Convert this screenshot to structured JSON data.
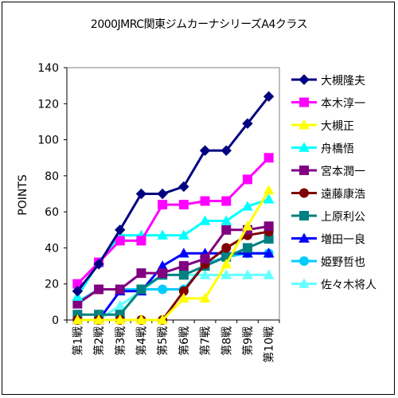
{
  "chart_data": {
    "type": "line",
    "title": "2000JMRC関東ジムカーナシリーズA4クラス",
    "ylabel": "POINTS",
    "xlabel": "",
    "ylim": [
      0,
      140
    ],
    "yticks": [
      0,
      20,
      40,
      60,
      80,
      100,
      120,
      140
    ],
    "grid": false,
    "legend_position": "right",
    "categories": [
      "第1戦",
      "第2戦",
      "第3戦",
      "第4戦",
      "第5戦",
      "第6戦",
      "第7戦",
      "第8戦",
      "第9戦",
      "第10戦"
    ],
    "series": [
      {
        "name": "大槻隆夫",
        "color": "#000080",
        "marker": "diamond",
        "values": [
          16,
          31,
          50,
          70,
          70,
          74,
          94,
          94,
          109,
          124
        ]
      },
      {
        "name": "本木淳一",
        "color": "#FF00FF",
        "marker": "square",
        "values": [
          20,
          32,
          44,
          44,
          64,
          64,
          66,
          66,
          78,
          90
        ]
      },
      {
        "name": "大槻正",
        "color": "#FFFF00",
        "marker": "triangle",
        "values": [
          0,
          0,
          0,
          0,
          0,
          12,
          12,
          31,
          52,
          72
        ]
      },
      {
        "name": "舟橋悟",
        "color": "#00FFFF",
        "marker": "triangle",
        "values": [
          13,
          32,
          47,
          47,
          47,
          47,
          55,
          55,
          63,
          67
        ]
      },
      {
        "name": "宮本潤一",
        "color": "#800080",
        "marker": "square",
        "values": [
          9,
          17,
          17,
          26,
          26,
          30,
          34,
          50,
          50,
          52
        ]
      },
      {
        "name": "遠藤康浩",
        "color": "#800000",
        "marker": "circle",
        "values": [
          0,
          0,
          0,
          0,
          0,
          16,
          31,
          40,
          47,
          49
        ]
      },
      {
        "name": "上原利公",
        "color": "#008080",
        "marker": "square",
        "values": [
          3,
          3,
          3,
          17,
          25,
          25,
          30,
          35,
          40,
          45
        ]
      },
      {
        "name": "増田一良",
        "color": "#0000FF",
        "marker": "triangle",
        "values": [
          0,
          0,
          16,
          16,
          30,
          37,
          37,
          37,
          37,
          37
        ]
      },
      {
        "name": "姫野哲也",
        "color": "#00CCFF",
        "marker": "circle",
        "values": [
          10,
          17,
          17,
          17,
          17,
          17,
          31,
          35,
          37,
          37
        ]
      },
      {
        "name": "佐々木将人",
        "color": "#66FFFF",
        "marker": "triangle",
        "values": [
          0,
          0,
          8,
          16,
          25,
          25,
          25,
          25,
          25,
          25
        ]
      }
    ]
  }
}
